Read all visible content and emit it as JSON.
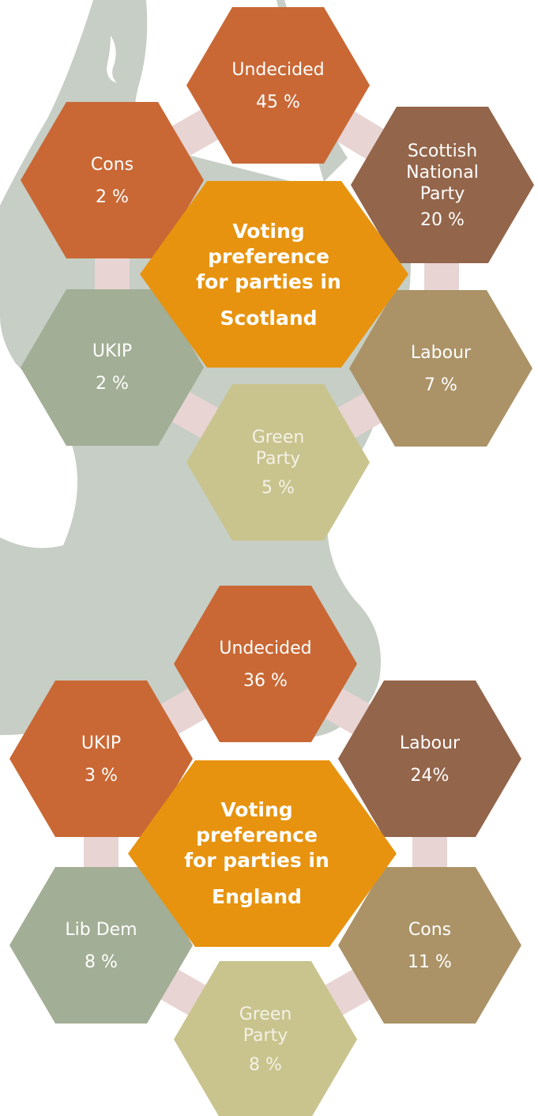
{
  "colors": {
    "orange": "#C96835",
    "brown": "#93654A",
    "tan": "#AB9367",
    "sage": "#A2AE95",
    "khaki": "#C9C48E",
    "center": "#E7930F",
    "connector": "#E8D4D3",
    "silhouette": "#C6CEC5"
  },
  "diagrams": [
    {
      "title": "Voting preference for parties in",
      "region": "Scotland",
      "parties": [
        {
          "label": "Undecided",
          "value": "45 %",
          "color": "orange"
        },
        {
          "label": "Cons",
          "value": "2 %",
          "color": "orange"
        },
        {
          "label": "Scottish National Party",
          "value": "20 %",
          "color": "brown"
        },
        {
          "label": "UKIP",
          "value": "2 %",
          "color": "sage"
        },
        {
          "label": "Labour",
          "value": "7 %",
          "color": "tan"
        },
        {
          "label": "Green Party",
          "value": "5 %",
          "color": "khaki"
        }
      ]
    },
    {
      "title": "Voting preference for parties in",
      "region": "England",
      "parties": [
        {
          "label": "Undecided",
          "value": "36 %",
          "color": "orange"
        },
        {
          "label": "UKIP",
          "value": "3 %",
          "color": "orange"
        },
        {
          "label": "Labour",
          "value": "24%",
          "color": "brown"
        },
        {
          "label": "Lib Dem",
          "value": "8 %",
          "color": "sage"
        },
        {
          "label": "Cons",
          "value": "11 %",
          "color": "tan"
        },
        {
          "label": "Green Party",
          "value": "8 %",
          "color": "khaki"
        }
      ]
    }
  ]
}
